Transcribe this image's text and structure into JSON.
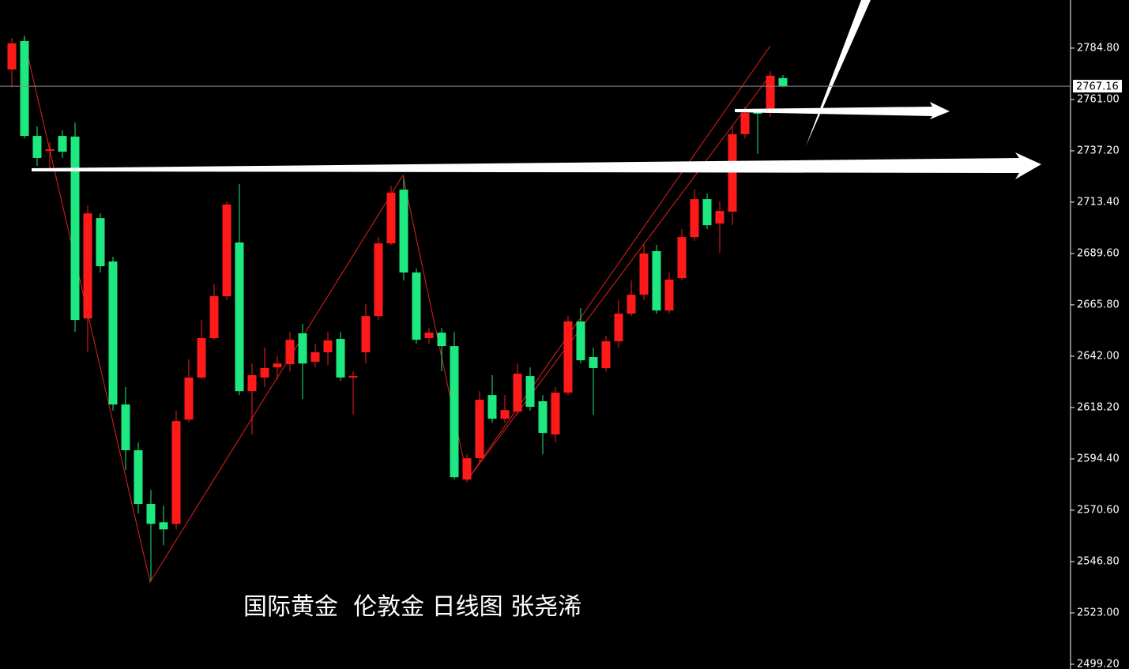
{
  "chart_data": {
    "type": "candlestick",
    "annotation": "国际黄金  伦敦金 日线图 张尧浠",
    "ylim": [
      2497.0,
      2807.1
    ],
    "yticks": [
      {
        "value": 2784.8,
        "label": "2784.80"
      },
      {
        "value": 2761.0,
        "label": "2761.00"
      },
      {
        "value": 2737.2,
        "label": "2737.20"
      },
      {
        "value": 2713.4,
        "label": "2713.40"
      },
      {
        "value": 2689.6,
        "label": "2689.60"
      },
      {
        "value": 2665.8,
        "label": "2665.80"
      },
      {
        "value": 2642.0,
        "label": "2642.00"
      },
      {
        "value": 2618.2,
        "label": "2618.20"
      },
      {
        "value": 2594.4,
        "label": "2594.40"
      },
      {
        "value": 2570.6,
        "label": "2570.60"
      },
      {
        "value": 2546.8,
        "label": "2546.80"
      },
      {
        "value": 2523.0,
        "label": "2523.00"
      },
      {
        "value": 2499.2,
        "label": "2499.20"
      }
    ],
    "current_price": 2767.16,
    "up_color": "#ff1a1a",
    "down_color": "#1de980",
    "open": [
      2774.9,
      2788.1,
      2744.1,
      2737.2,
      2744.1,
      2743.8,
      2659.5,
      2706.0,
      2685.9,
      2619.6,
      2598.4,
      2573.5,
      2565.0,
      2564.3,
      2612.6,
      2632.1,
      2650.4,
      2669.8,
      2694.7,
      2625.8,
      2632.1,
      2636.8,
      2638.3,
      2652.6,
      2639.4,
      2643.8,
      2650.0,
      2632.1,
      2643.8,
      2660.6,
      2694.3,
      2719.2,
      2680.8,
      2650.4,
      2652.9,
      2646.7,
      2584.8,
      2594.7,
      2624.0,
      2613.0,
      2616.3,
      2632.8,
      2621.1,
      2605.7,
      2625.1,
      2658.1,
      2641.6,
      2636.5,
      2648.9,
      2661.7,
      2670.5,
      2690.7,
      2663.2,
      2678.2,
      2697.2,
      2714.8,
      2703.5,
      2709.0,
      2744.9,
      2755.1,
      2754.7,
      2770.9
    ],
    "high": [
      2789.5,
      2790.6,
      2748.5,
      2741.2,
      2746.7,
      2750.3,
      2711.9,
      2708.2,
      2688.1,
      2627.7,
      2602.0,
      2580.1,
      2572.7,
      2616.7,
      2640.5,
      2658.8,
      2675.3,
      2713.7,
      2721.8,
      2638.6,
      2646.0,
      2642.3,
      2653.3,
      2657.0,
      2647.8,
      2653.3,
      2653.3,
      2635.0,
      2666.1,
      2697.2,
      2721.0,
      2724.7,
      2682.6,
      2655.1,
      2655.1,
      2653.3,
      2596.5,
      2625.8,
      2633.2,
      2624.0,
      2638.6,
      2636.8,
      2624.0,
      2627.7,
      2660.6,
      2664.3,
      2646.0,
      2651.5,
      2668.0,
      2677.1,
      2693.6,
      2693.6,
      2680.8,
      2700.9,
      2719.2,
      2717.4,
      2713.7,
      2748.5,
      2757.7,
      2756.6,
      2774.1,
      2772.3
    ],
    "low": [
      2766.8,
      2743.0,
      2730.2,
      2728.4,
      2733.9,
      2653.3,
      2644.1,
      2680.8,
      2616.7,
      2589.2,
      2569.1,
      2538.0,
      2554.4,
      2561.7,
      2611.2,
      2631.3,
      2649.6,
      2668.0,
      2624.0,
      2605.7,
      2627.7,
      2631.3,
      2635.0,
      2622.2,
      2636.8,
      2637.9,
      2630.6,
      2614.9,
      2638.6,
      2658.8,
      2693.6,
      2677.1,
      2647.8,
      2647.8,
      2635.0,
      2584.8,
      2583.7,
      2592.9,
      2611.2,
      2611.2,
      2614.9,
      2616.7,
      2596.5,
      2602.0,
      2624.0,
      2638.6,
      2614.9,
      2635.0,
      2646.0,
      2660.6,
      2668.0,
      2661.7,
      2661.7,
      2677.1,
      2695.4,
      2700.9,
      2689.9,
      2702.7,
      2743.0,
      2735.7,
      2752.9,
      2766.8
    ],
    "close": [
      2787.0,
      2744.1,
      2733.9,
      2737.9,
      2736.8,
      2658.8,
      2708.2,
      2683.7,
      2619.6,
      2598.4,
      2573.5,
      2564.3,
      2561.7,
      2611.9,
      2632.1,
      2650.4,
      2669.8,
      2712.3,
      2625.8,
      2633.2,
      2636.5,
      2638.6,
      2649.6,
      2638.6,
      2643.8,
      2649.3,
      2632.1,
      2632.8,
      2660.6,
      2694.3,
      2717.8,
      2680.8,
      2649.6,
      2652.9,
      2646.7,
      2585.9,
      2594.7,
      2621.8,
      2613.0,
      2617.0,
      2633.9,
      2618.5,
      2606.4,
      2625.1,
      2658.1,
      2640.1,
      2636.5,
      2648.9,
      2661.7,
      2670.5,
      2689.6,
      2663.2,
      2677.5,
      2697.2,
      2714.8,
      2702.7,
      2709.3,
      2744.9,
      2754.7,
      2754.4,
      2772.0,
      2767.16
    ]
  }
}
